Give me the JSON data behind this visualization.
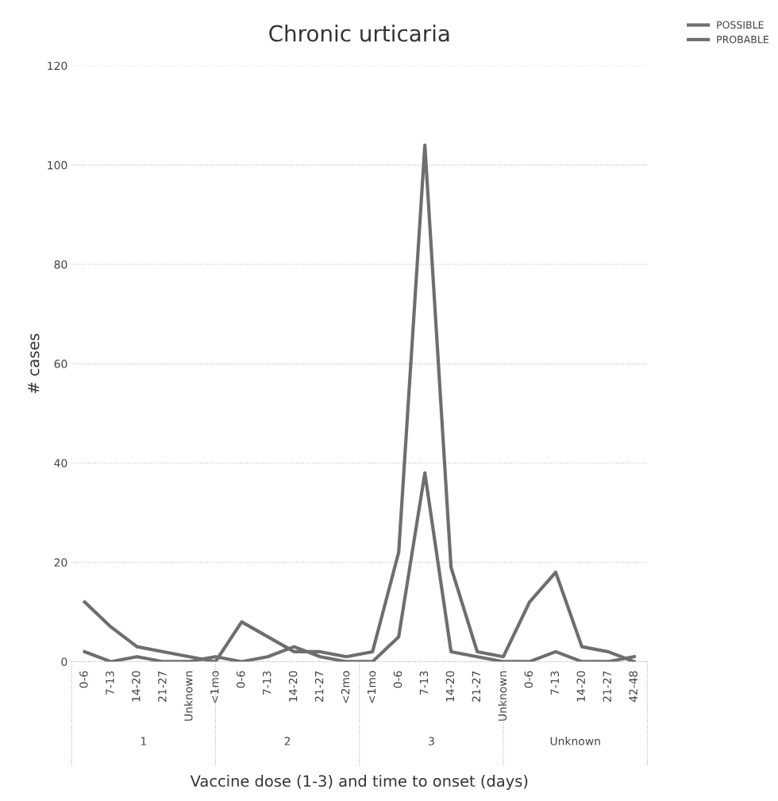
{
  "chart_data": {
    "type": "line",
    "title": "Chronic urticaria",
    "xlabel": "Vaccine dose (1-3) and time to onset (days)",
    "ylabel": "# cases",
    "categories": [
      "0-6",
      "7-13",
      "14-20",
      "21-27",
      "Unknown",
      "<1mo",
      "0-6",
      "7-13",
      "14-20",
      "21-27",
      "<2mo",
      "<1mo",
      "0-6",
      "7-13",
      "14-20",
      "21-27",
      "Unknown",
      "0-6",
      "7-13",
      "14-20",
      "21-27",
      "42-48"
    ],
    "annotations": [
      "1",
      "2",
      "3",
      "Unknown"
    ],
    "series": [
      {
        "name": "POSSIBLE",
        "color": "#6e6e6e",
        "values": [
          12,
          7,
          3,
          2,
          1,
          0,
          8,
          5,
          2,
          2,
          1,
          2,
          22,
          104,
          19,
          2,
          1,
          12,
          18,
          3,
          2,
          0
        ]
      },
      {
        "name": "PROBABLE",
        "color": "#6e6e6e",
        "values": [
          2,
          0,
          1,
          0,
          0,
          1,
          0,
          1,
          3,
          1,
          0,
          0,
          5,
          38,
          2,
          1,
          0,
          0,
          2,
          0,
          0,
          1
        ]
      }
    ],
    "ylim": [
      0,
      120
    ],
    "yticks": [
      0,
      20,
      40,
      60,
      80,
      100,
      120
    ],
    "grid": "y",
    "legend": "top right",
    "marker": "none",
    "line_style": "solid"
  }
}
